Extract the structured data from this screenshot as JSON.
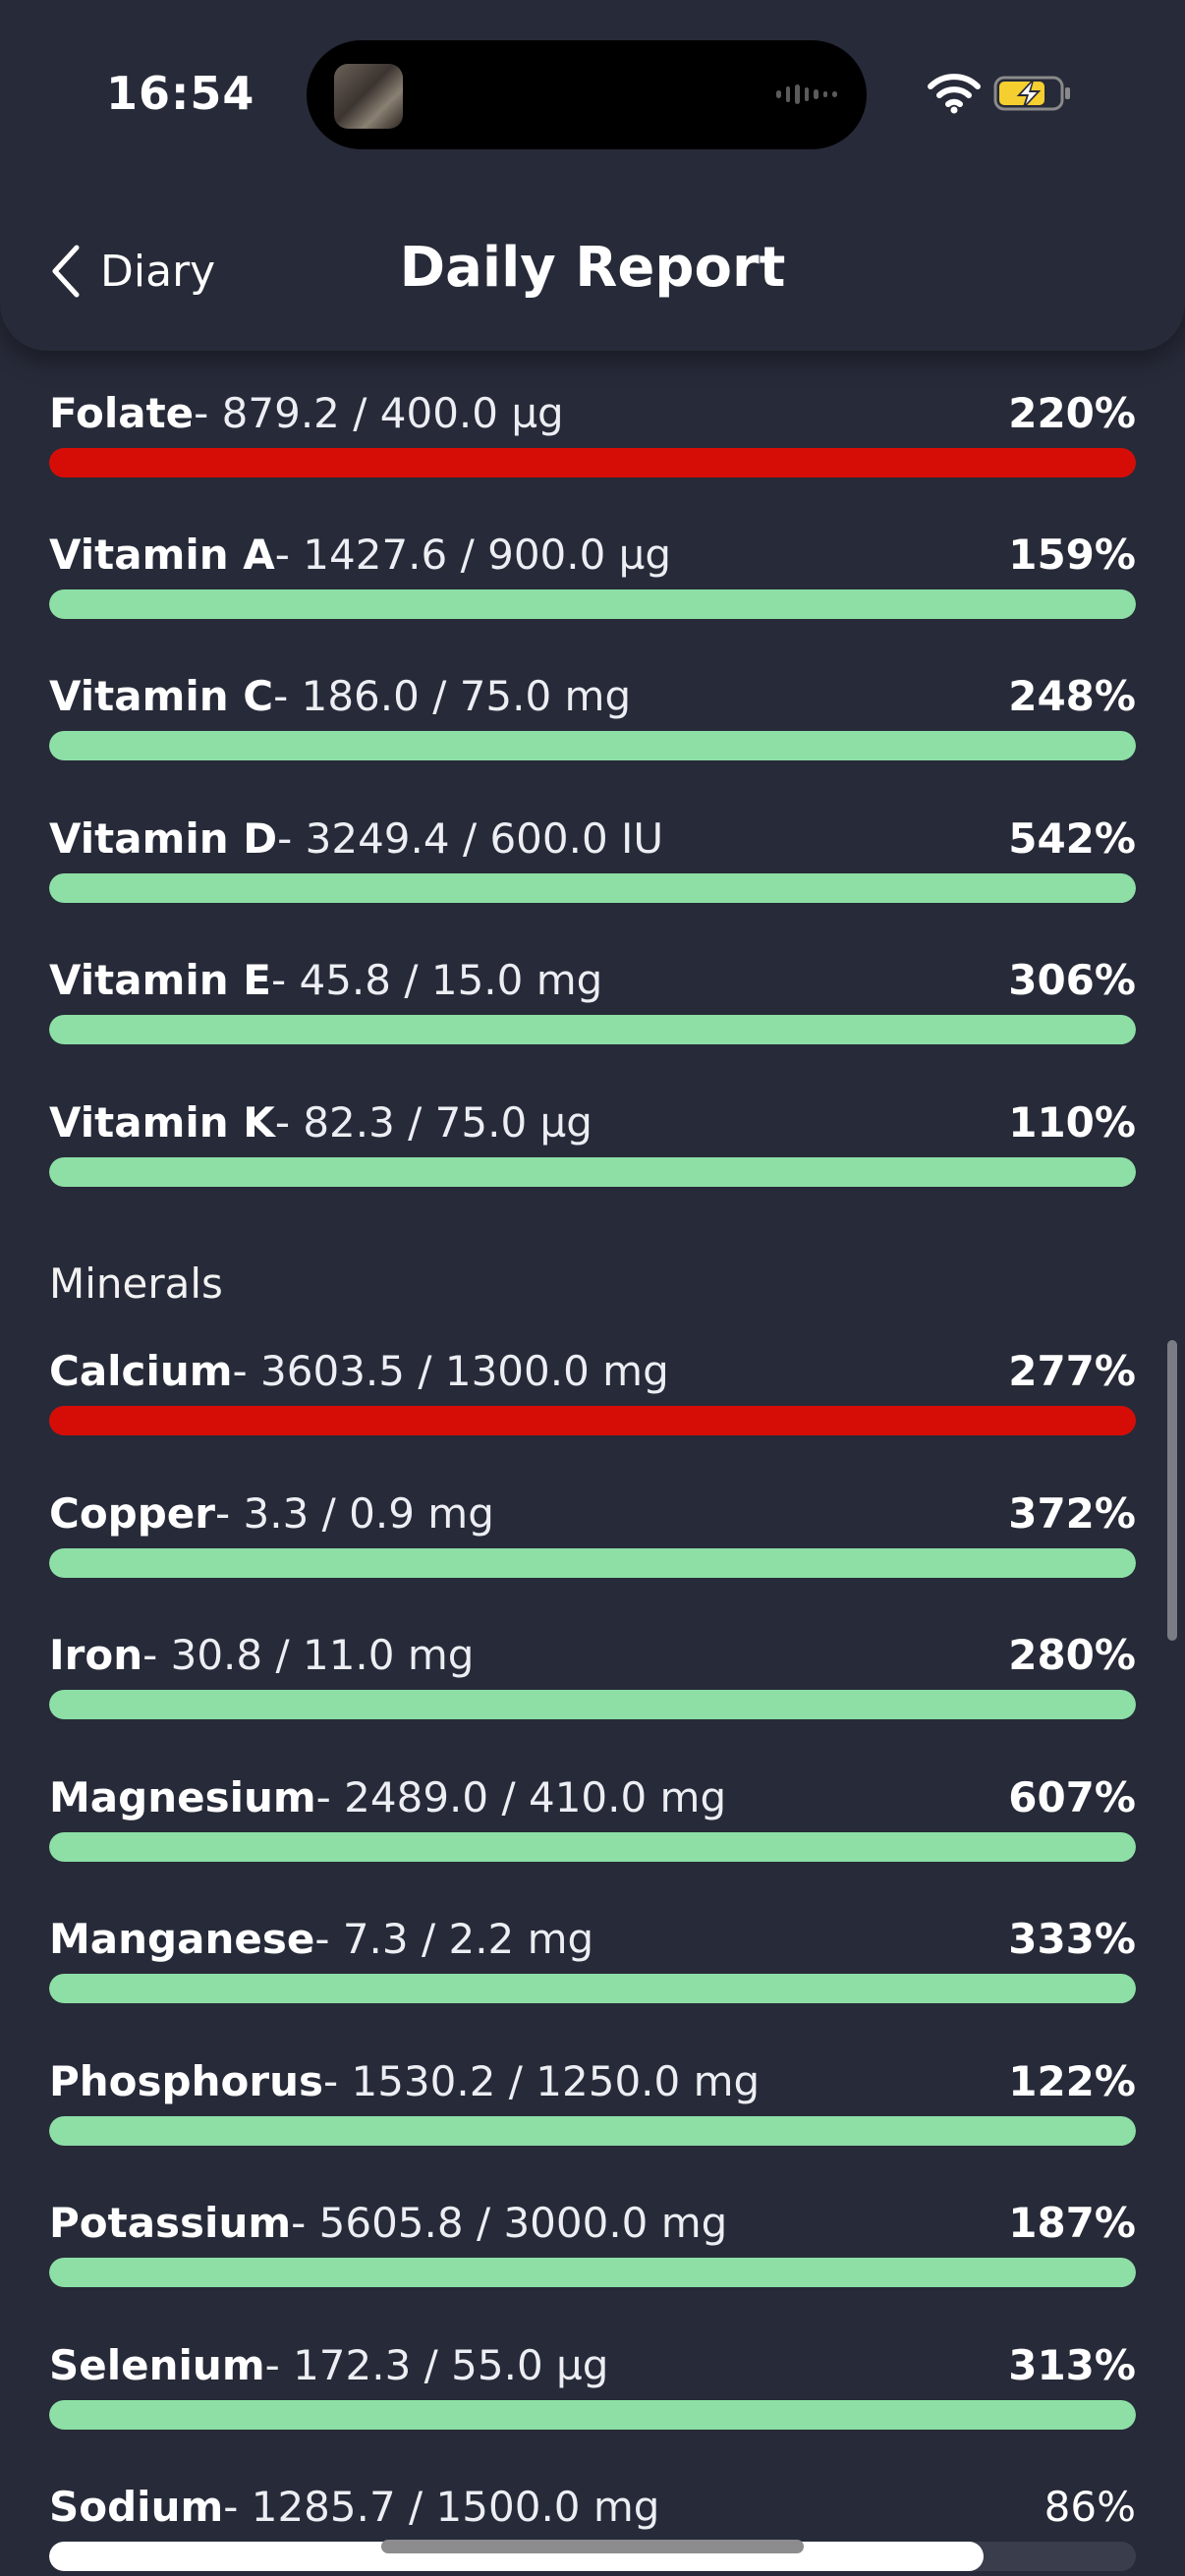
{
  "status": {
    "time": "16:54"
  },
  "header": {
    "back_label": "Diary",
    "title": "Daily Report"
  },
  "colors": {
    "over": "#d60d07",
    "ok": "#8ddfa6",
    "partial": "#ffffff",
    "background": "#272a38"
  },
  "vitamins": [
    {
      "name": "Folate",
      "amount": "- 879.2 / 400.0 µg",
      "percent": "220%",
      "fill": 1.0,
      "status": "over"
    },
    {
      "name": "Vitamin A",
      "amount": "- 1427.6 / 900.0 µg",
      "percent": "159%",
      "fill": 1.0,
      "status": "ok"
    },
    {
      "name": "Vitamin C",
      "amount": "- 186.0 / 75.0 mg",
      "percent": "248%",
      "fill": 1.0,
      "status": "ok"
    },
    {
      "name": "Vitamin D",
      "amount": "- 3249.4 / 600.0 IU",
      "percent": "542%",
      "fill": 1.0,
      "status": "ok"
    },
    {
      "name": "Vitamin E",
      "amount": "- 45.8 / 15.0 mg",
      "percent": "306%",
      "fill": 1.0,
      "status": "ok"
    },
    {
      "name": "Vitamin K",
      "amount": "- 82.3 / 75.0 µg",
      "percent": "110%",
      "fill": 1.0,
      "status": "ok"
    }
  ],
  "minerals_title": "Minerals",
  "minerals": [
    {
      "name": "Calcium",
      "amount": "- 3603.5 / 1300.0 mg",
      "percent": "277%",
      "fill": 1.0,
      "status": "over"
    },
    {
      "name": "Copper",
      "amount": "- 3.3 / 0.9 mg",
      "percent": "372%",
      "fill": 1.0,
      "status": "ok"
    },
    {
      "name": "Iron",
      "amount": "- 30.8 / 11.0 mg",
      "percent": "280%",
      "fill": 1.0,
      "status": "ok"
    },
    {
      "name": "Magnesium",
      "amount": "- 2489.0 / 410.0 mg",
      "percent": "607%",
      "fill": 1.0,
      "status": "ok"
    },
    {
      "name": "Manganese",
      "amount": "- 7.3 / 2.2 mg",
      "percent": "333%",
      "fill": 1.0,
      "status": "ok"
    },
    {
      "name": "Phosphorus",
      "amount": "- 1530.2 / 1250.0 mg",
      "percent": "122%",
      "fill": 1.0,
      "status": "ok"
    },
    {
      "name": "Potassium",
      "amount": "- 5605.8 / 3000.0 mg",
      "percent": "187%",
      "fill": 1.0,
      "status": "ok"
    },
    {
      "name": "Selenium",
      "amount": "- 172.3 / 55.0 µg",
      "percent": "313%",
      "fill": 1.0,
      "status": "ok"
    },
    {
      "name": "Sodium",
      "amount": "- 1285.7 / 1500.0 mg",
      "percent": "86%",
      "fill": 0.86,
      "status": "partial"
    }
  ]
}
